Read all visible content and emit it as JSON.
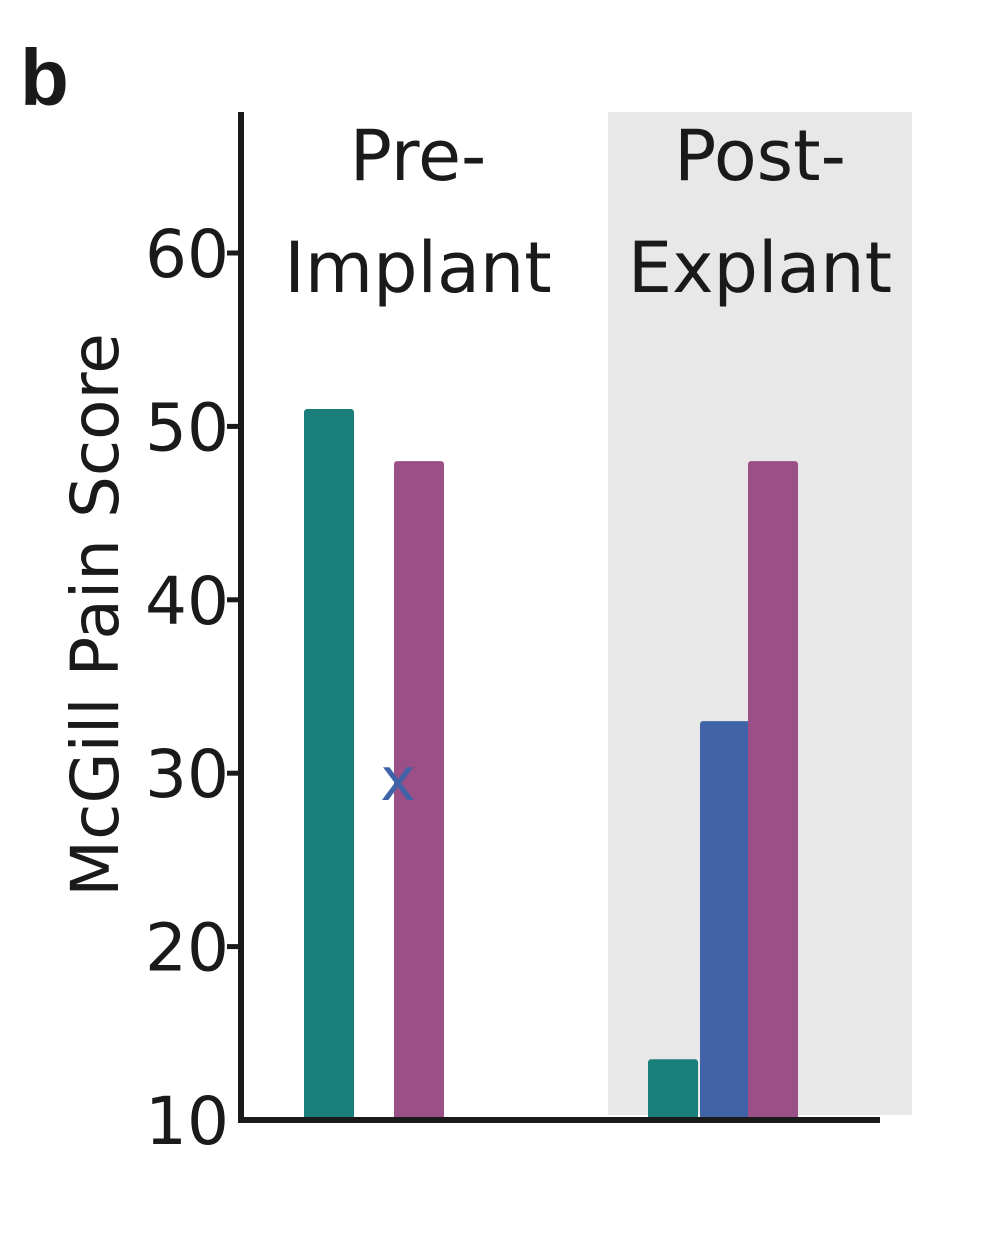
{
  "panel_label": "b",
  "chart_data": {
    "type": "bar",
    "title": "",
    "xlabel": "",
    "ylabel": "McGill Pain Score",
    "ylim": [
      10,
      60
    ],
    "yticks": [
      10,
      20,
      30,
      40,
      50,
      60
    ],
    "grid": false,
    "categories": [
      {
        "line1": "Pre-",
        "line2": "Implant",
        "shaded": false
      },
      {
        "line1": "Post-",
        "line2": "Explant",
        "shaded": true
      }
    ],
    "series": [
      {
        "color": "#1a7f7a",
        "values": [
          51,
          13.5
        ]
      },
      {
        "color": "#4063a8",
        "values": [
          null,
          33
        ],
        "markers": [
          {
            "category": 0,
            "value": 29.5,
            "text": "x"
          }
        ]
      },
      {
        "color": "#9a4f86",
        "values": [
          48,
          48
        ]
      }
    ],
    "colors": {
      "shade": "#e8e8e8",
      "axis": "#1a1a1a"
    }
  }
}
